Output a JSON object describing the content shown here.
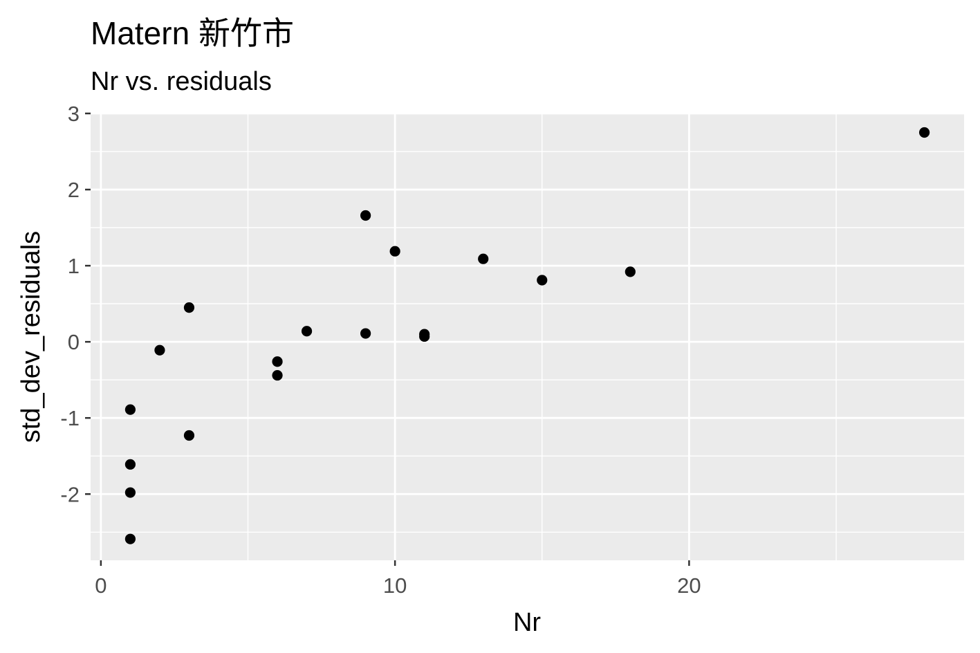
{
  "chart_data": {
    "type": "scatter",
    "title": "Matern 新竹市",
    "subtitle": "Nr vs. residuals",
    "xlabel": "Nr",
    "ylabel": "std_dev_residuals",
    "xlim": [
      -0.35,
      29.35
    ],
    "ylim": [
      -2.87,
      3.0
    ],
    "x_ticks": [
      0,
      10,
      20
    ],
    "x_minor_ticks": [
      5,
      15,
      25
    ],
    "y_ticks": [
      -2,
      -1,
      0,
      1,
      2,
      3
    ],
    "y_minor_ticks": [
      -2.5,
      -1.5,
      -0.5,
      0.5,
      1.5,
      2.5
    ],
    "x_tick_labels": [
      "0",
      "10",
      "20"
    ],
    "y_tick_labels": [
      "-2",
      "-1",
      "0",
      "1",
      "2",
      "3"
    ],
    "grid": true,
    "points": [
      {
        "x": 1,
        "y": -0.89
      },
      {
        "x": 1,
        "y": -1.61
      },
      {
        "x": 1,
        "y": -1.98
      },
      {
        "x": 1,
        "y": -2.59
      },
      {
        "x": 2,
        "y": -0.11
      },
      {
        "x": 3,
        "y": 0.45
      },
      {
        "x": 3,
        "y": -1.23
      },
      {
        "x": 6,
        "y": -0.26
      },
      {
        "x": 6,
        "y": -0.44
      },
      {
        "x": 7,
        "y": 0.14
      },
      {
        "x": 9,
        "y": 1.66
      },
      {
        "x": 9,
        "y": 0.11
      },
      {
        "x": 10,
        "y": 1.19
      },
      {
        "x": 11,
        "y": 0.1
      },
      {
        "x": 11,
        "y": 0.07
      },
      {
        "x": 13,
        "y": 1.09
      },
      {
        "x": 15,
        "y": 0.81
      },
      {
        "x": 18,
        "y": 0.92
      },
      {
        "x": 28,
        "y": 2.75
      }
    ]
  },
  "colors": {
    "panel_background": "#ebebeb",
    "grid": "#ffffff",
    "point": "#000000",
    "tick": "#333333",
    "tick_label": "#4d4d4d"
  }
}
